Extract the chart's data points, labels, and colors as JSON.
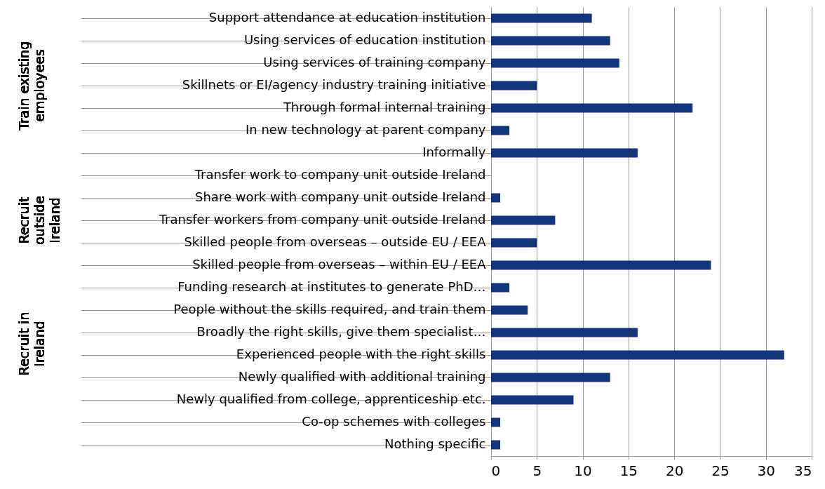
{
  "chart_data": {
    "type": "bar",
    "orientation": "horizontal",
    "categories": [
      "Support attendance at education institution",
      "Using services of education institution",
      "Using services of training company",
      "Skillnets or EI/agency industry training initiative",
      "Through formal internal training",
      "In new technology at parent company",
      "Informally",
      "Transfer work to company unit outside Ireland",
      "Share work with company unit outside Ireland",
      "Transfer workers from company unit outside Ireland",
      "Skilled people from overseas – outside EU / EEA",
      "Skilled people from overseas – within EU / EEA",
      "Funding research at institutes to generate PhD…",
      "People without the skills required, and train them",
      "Broadly the right skills, give them specialist…",
      "Experienced people with the right skills",
      "Newly qualified with additional training",
      "Newly qualified from college, apprenticeship etc.",
      "Co-op schemes with colleges",
      "Nothing specific"
    ],
    "values": [
      11,
      13,
      14,
      5,
      22,
      2,
      16,
      0,
      1,
      7,
      5,
      24,
      2,
      4,
      16,
      32,
      13,
      9,
      1,
      1
    ],
    "color": "#14357a",
    "xlim": [
      0,
      35
    ],
    "xticks": [
      0,
      5,
      10,
      15,
      20,
      25,
      30,
      35
    ],
    "grid": "x",
    "annotations": [
      "Train existing employees",
      "Recruit outside Ireland",
      "Recruit in Ireland"
    ]
  }
}
